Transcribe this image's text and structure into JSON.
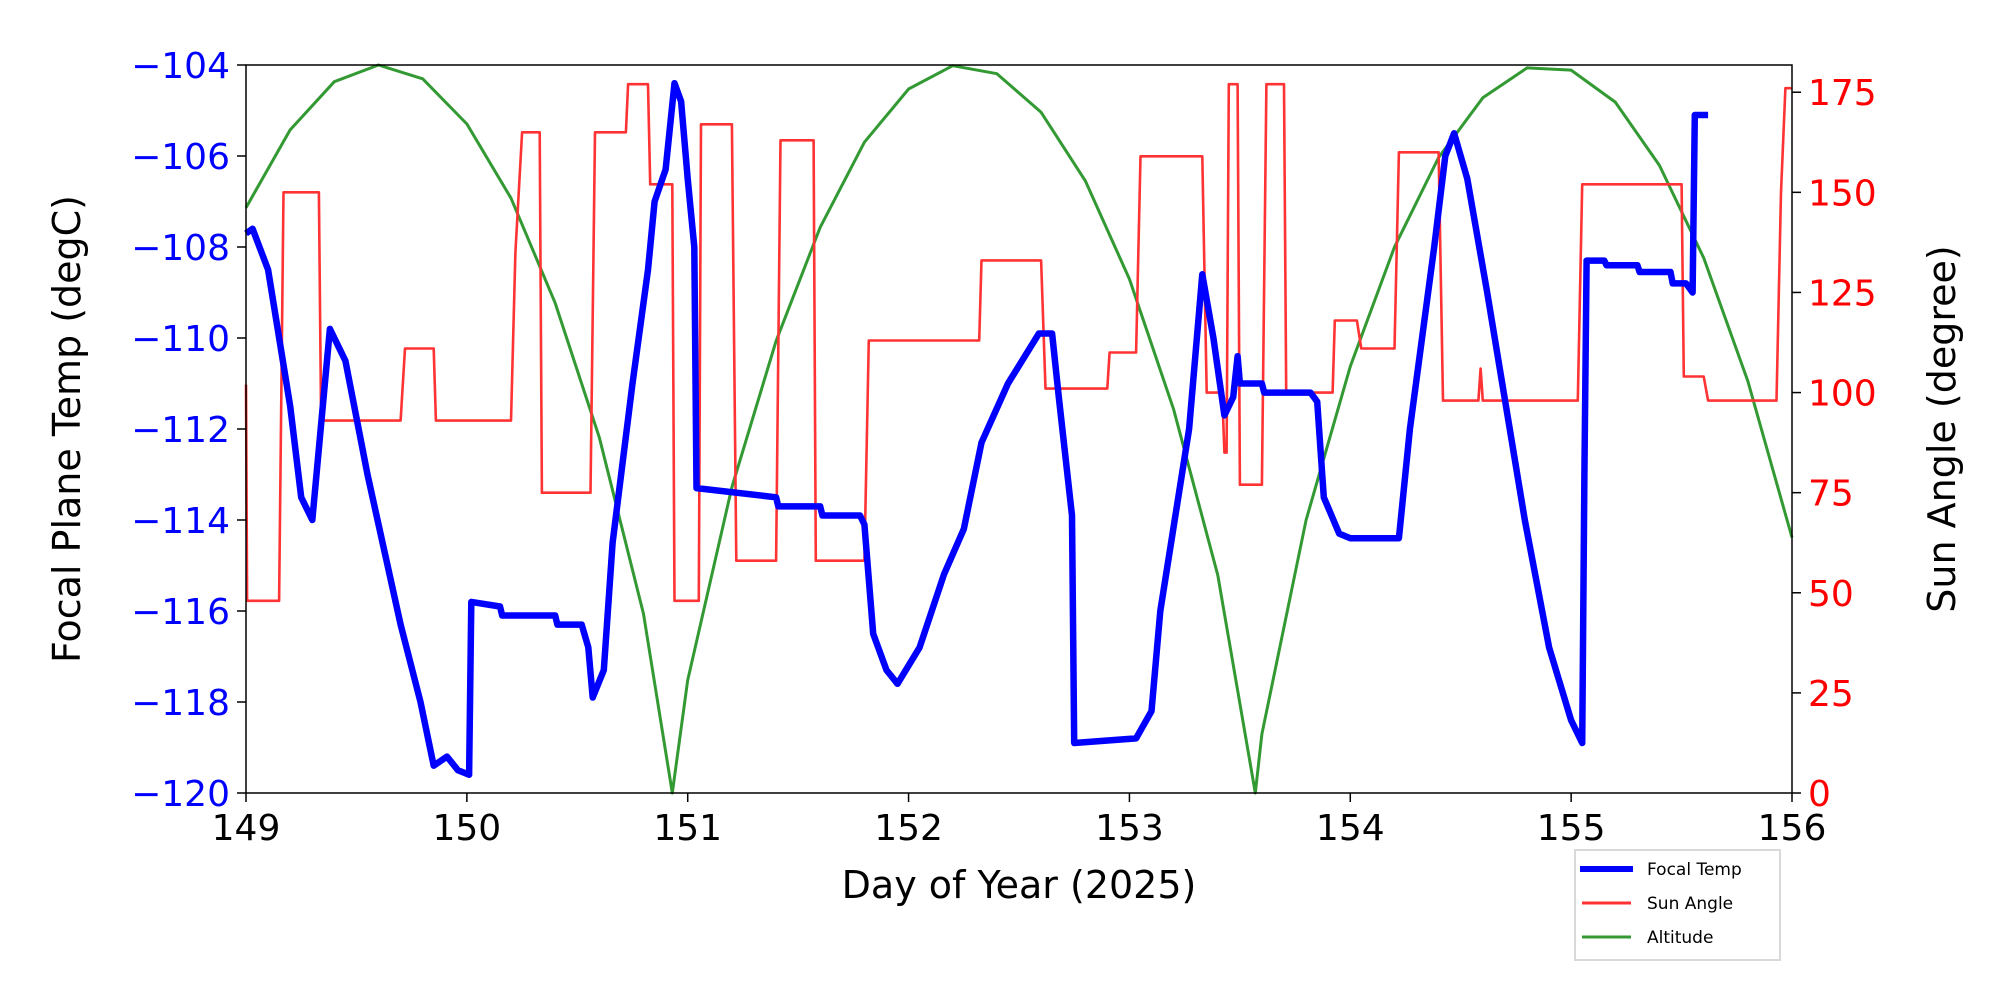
{
  "chart_data": {
    "type": "line",
    "xlabel": "Day of Year (2025)",
    "ylabel_left": "Focal Plane Temp (degC)",
    "ylabel_right": "Sun Angle (degree)",
    "xlim": [
      149,
      156
    ],
    "ylim_left": [
      -120,
      -104
    ],
    "ylim_right": [
      0,
      181.8
    ],
    "x_ticks": [
      "149",
      "150",
      "151",
      "152",
      "153",
      "154",
      "155",
      "156"
    ],
    "x_tick_values": [
      149,
      150,
      151,
      152,
      153,
      154,
      155,
      156
    ],
    "y_left_ticks": [
      "−104",
      "−106",
      "−108",
      "−110",
      "−112",
      "−114",
      "−116",
      "−118",
      "−120"
    ],
    "y_left_tick_values": [
      -104,
      -106,
      -108,
      -110,
      -112,
      -114,
      -116,
      -118,
      -120
    ],
    "y_right_ticks": [
      "175",
      "150",
      "125",
      "100",
      "75",
      "50",
      "25",
      "0"
    ],
    "y_right_tick_values": [
      175,
      150,
      125,
      100,
      75,
      50,
      25,
      0
    ],
    "legend_position": "below-right",
    "colors": {
      "focal": "#0000ff",
      "sun": "#ff3333",
      "altitude": "#339933",
      "left_axis": "#0000ff",
      "right_axis": "#ff0000"
    },
    "series": [
      {
        "name": "Focal Temp",
        "axis": "left",
        "x": [
          149.0,
          149.03,
          149.1,
          149.2,
          149.25,
          149.3,
          149.38,
          149.45,
          149.55,
          149.7,
          149.79,
          149.85,
          149.91,
          149.96,
          150.01,
          150.02,
          150.15,
          150.16,
          150.4,
          150.41,
          150.52,
          150.55,
          150.57,
          150.62,
          150.66,
          150.75,
          150.82,
          150.85,
          150.9,
          150.94,
          150.97,
          151.0,
          151.03,
          151.04,
          151.4,
          151.41,
          151.6,
          151.61,
          151.78,
          151.8,
          151.84,
          151.9,
          151.95,
          152.05,
          152.16,
          152.25,
          152.33,
          152.45,
          152.59,
          152.65,
          152.68,
          152.74,
          152.75,
          153.03,
          153.1,
          153.14,
          153.27,
          153.33,
          153.38,
          153.43,
          153.47,
          153.49,
          153.5,
          153.6,
          153.61,
          153.82,
          153.85,
          153.88,
          153.95,
          154.0,
          154.2,
          154.22,
          154.27,
          154.38,
          154.43,
          154.47,
          154.53,
          154.62,
          154.79,
          154.9,
          155.0,
          155.05,
          155.06,
          155.07,
          155.15,
          155.16,
          155.3,
          155.31,
          155.45,
          155.46,
          155.52,
          155.55,
          155.56,
          155.62
        ],
        "y": [
          -107.7,
          -107.6,
          -108.5,
          -111.5,
          -113.5,
          -114.0,
          -109.8,
          -110.5,
          -113.0,
          -116.3,
          -118.0,
          -119.4,
          -119.2,
          -119.5,
          -119.6,
          -115.8,
          -115.9,
          -116.1,
          -116.1,
          -116.3,
          -116.3,
          -116.8,
          -117.9,
          -117.3,
          -114.5,
          -111.0,
          -108.5,
          -107.0,
          -106.3,
          -104.4,
          -104.8,
          -106.5,
          -108.0,
          -113.3,
          -113.5,
          -113.7,
          -113.7,
          -113.9,
          -113.9,
          -114.1,
          -116.5,
          -117.3,
          -117.6,
          -116.8,
          -115.2,
          -114.2,
          -112.3,
          -111.0,
          -109.9,
          -109.9,
          -111.3,
          -113.9,
          -118.9,
          -118.8,
          -118.2,
          -116.0,
          -112.0,
          -108.6,
          -110.0,
          -111.7,
          -111.3,
          -110.4,
          -111.0,
          -111.0,
          -111.2,
          -111.2,
          -111.4,
          -113.5,
          -114.3,
          -114.4,
          -114.4,
          -114.4,
          -112.0,
          -108.0,
          -106.0,
          -105.5,
          -106.5,
          -109.0,
          -114.0,
          -116.8,
          -118.4,
          -118.9,
          -113.0,
          -108.3,
          -108.3,
          -108.4,
          -108.4,
          -108.55,
          -108.55,
          -108.8,
          -108.8,
          -109.0,
          -105.1,
          -105.1
        ]
      },
      {
        "name": "Sun Angle",
        "axis": "right",
        "x": [
          149.0,
          149.005,
          149.15,
          149.17,
          149.33,
          149.34,
          149.7,
          149.72,
          149.85,
          149.86,
          150.2,
          150.22,
          150.25,
          150.33,
          150.34,
          150.56,
          150.58,
          150.72,
          150.73,
          150.82,
          150.83,
          150.93,
          150.94,
          151.05,
          151.06,
          151.2,
          151.22,
          151.4,
          151.42,
          151.57,
          151.58,
          151.8,
          151.82,
          152.32,
          152.33,
          152.6,
          152.62,
          152.9,
          152.91,
          153.03,
          153.05,
          153.33,
          153.35,
          153.42,
          153.43,
          153.44,
          153.45,
          153.49,
          153.5,
          153.6,
          153.62,
          153.7,
          153.71,
          153.92,
          153.93,
          154.03,
          154.05,
          154.2,
          154.22,
          154.4,
          154.42,
          154.58,
          154.59,
          154.6,
          155.03,
          155.05,
          155.5,
          155.51,
          155.6,
          155.62,
          155.93,
          155.95,
          155.97,
          156.0
        ],
        "y": [
          102,
          48,
          48,
          150,
          150,
          93,
          93,
          111,
          111,
          93,
          93,
          135,
          165,
          165,
          75,
          75,
          165,
          165,
          177,
          177,
          152,
          152,
          48,
          48,
          167,
          167,
          58,
          58,
          163,
          163,
          58,
          58,
          113,
          113,
          133,
          133,
          101,
          101,
          110,
          110,
          159,
          159,
          100,
          100,
          85,
          85,
          177,
          177,
          77,
          77,
          177,
          177,
          100,
          100,
          118,
          118,
          111,
          111,
          160,
          160,
          98,
          98,
          106,
          98,
          98,
          152,
          152,
          104,
          104,
          98,
          98,
          150,
          176,
          176
        ]
      },
      {
        "name": "Altitude",
        "axis": "normalized",
        "x": [
          149.0,
          149.2,
          149.4,
          149.6,
          149.8,
          150.0,
          150.2,
          150.4,
          150.6,
          150.8,
          150.93,
          151.0,
          151.2,
          151.4,
          151.6,
          151.8,
          152.0,
          152.2,
          152.4,
          152.6,
          152.8,
          153.0,
          153.2,
          153.4,
          153.57,
          153.6,
          153.8,
          154.0,
          154.2,
          154.4,
          154.6,
          154.8,
          155.0,
          155.2,
          155.4,
          155.6,
          155.8,
          156.0
        ],
        "y": [
          0.804,
          0.911,
          0.977,
          1.0,
          0.981,
          0.919,
          0.817,
          0.673,
          0.488,
          0.246,
          0.0,
          0.155,
          0.42,
          0.621,
          0.777,
          0.894,
          0.967,
          0.999,
          0.988,
          0.935,
          0.841,
          0.706,
          0.527,
          0.299,
          0.0,
          0.081,
          0.375,
          0.586,
          0.75,
          0.873,
          0.955,
          0.996,
          0.993,
          0.949,
          0.862,
          0.735,
          0.566,
          0.351
        ]
      }
    ]
  }
}
